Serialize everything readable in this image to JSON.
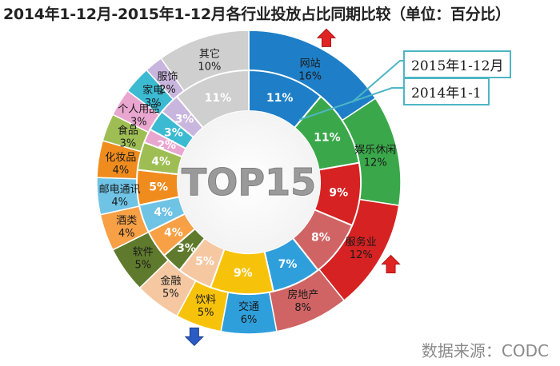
{
  "title": "2014年1-12月-2015年1-12月各行业投放占比同期比较（单位：百分比）",
  "center_label": "TOP15",
  "source": "数据来源：CODC",
  "chart_data": {
    "type": "donut",
    "title": "2014年1-12月-2015年1-12月各行业投放占比同期比较（单位：百分比）",
    "series": [
      {
        "name": "2015年1-12月",
        "ring": "outer"
      },
      {
        "name": "2014年1-1",
        "ring": "inner"
      }
    ],
    "categories": [
      {
        "label": "网站",
        "color": "#1e7fc8",
        "v2015": 16,
        "v2014": 11,
        "l2015": "16%",
        "l2014": "11%",
        "trend": "up"
      },
      {
        "label": "娱乐休闲",
        "color": "#3aa84a",
        "v2015": 12,
        "v2014": 11,
        "l2015": "12%",
        "l2014": "11%"
      },
      {
        "label": "服务业",
        "color": "#d62222",
        "v2015": 12,
        "v2014": 9,
        "l2015": "12%",
        "l2014": "9%",
        "trend": "up"
      },
      {
        "label": "房地产",
        "color": "#d06464",
        "v2015": 8,
        "v2014": 8,
        "l2015": "8%",
        "l2014": "8%"
      },
      {
        "label": "交通",
        "color": "#2f9fdc",
        "v2015": 6,
        "v2014": 7,
        "l2015": "6%",
        "l2014": "7%"
      },
      {
        "label": "饮料",
        "color": "#f7c30a",
        "v2015": 5,
        "v2014": 9,
        "l2015": "5%",
        "l2014": "9%",
        "trend": "down"
      },
      {
        "label": "金融",
        "color": "#f5c8a2",
        "v2015": 5,
        "v2014": 5,
        "l2015": "5%",
        "l2014": "5%"
      },
      {
        "label": "软件",
        "color": "#5f7a2d",
        "v2015": 5,
        "v2014": 3,
        "l2015": "5%",
        "l2014": "3%"
      },
      {
        "label": "酒类",
        "color": "#f7a046",
        "v2015": 4,
        "v2014": 4,
        "l2015": "4%",
        "l2014": "4%"
      },
      {
        "label": "邮电通讯",
        "color": "#6fc3e5",
        "v2015": 4,
        "v2014": 4,
        "l2015": "4%",
        "l2014": "4%"
      },
      {
        "label": "化妆品",
        "color": "#f08c1e",
        "v2015": 4,
        "v2014": 5,
        "l2015": "4%",
        "l2014": "5%"
      },
      {
        "label": "食品",
        "color": "#9ebe54",
        "v2015": 3,
        "v2014": 4,
        "l2015": "3%",
        "l2014": "4%"
      },
      {
        "label": "个人用品",
        "color": "#e9a6cf",
        "v2015": 3,
        "v2014": 2,
        "l2015": "3%",
        "l2014": "2%"
      },
      {
        "label": "家电",
        "color": "#3bbad2",
        "v2015": 3,
        "v2014": 3,
        "l2015": "3%",
        "l2014": "3%"
      },
      {
        "label": "服饰",
        "color": "#c9b6de",
        "v2015": 2,
        "v2014": 3,
        "l2015": "2%",
        "l2014": "3%"
      },
      {
        "label": "其它",
        "color": "#cfcfcf",
        "v2015": 10,
        "v2014": 11,
        "l2015": "10%",
        "l2014": "11%"
      }
    ]
  }
}
